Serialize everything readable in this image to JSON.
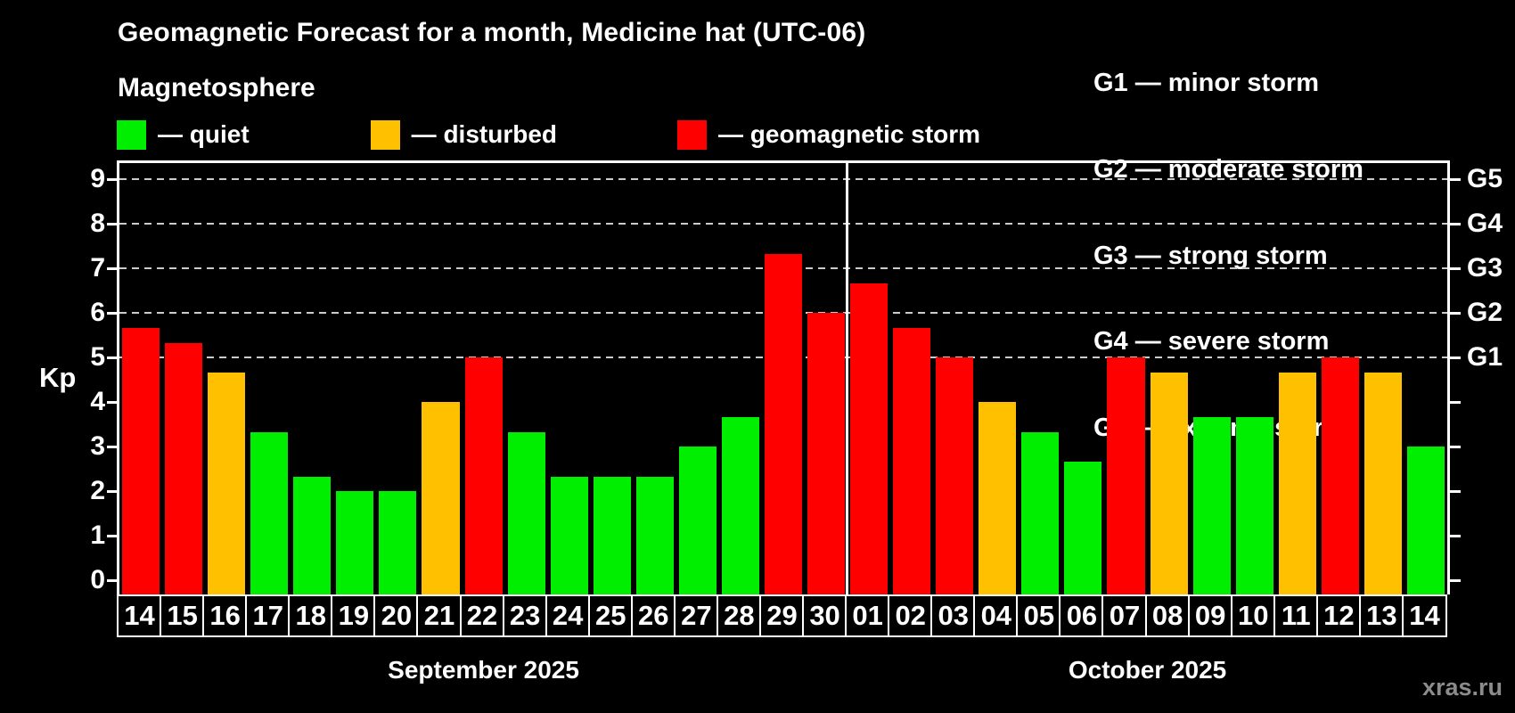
{
  "header": {
    "title": "Geomagnetic Forecast for a month, Medicine hat (UTC-06)",
    "subtitle": "Magnetosphere"
  },
  "legend": {
    "items": [
      {
        "name": "quiet",
        "label": "— quiet",
        "color": "#00ee00"
      },
      {
        "name": "disturbed",
        "label": "— disturbed",
        "color": "#ffc000"
      },
      {
        "name": "storm",
        "label": "— geomagnetic storm",
        "color": "#ff0000"
      }
    ]
  },
  "g_scale_legend": {
    "items": [
      "G1 — minor storm",
      "G2 — moderate storm",
      "G3 — strong storm",
      "G4 — severe storm",
      "G5 — extreme storm"
    ]
  },
  "watermark": "xras.ru",
  "chart_data": {
    "type": "bar",
    "title": "Geomagnetic Forecast for a month, Medicine hat (UTC-06)",
    "subtitle": "Magnetosphere",
    "ylabel": "Kp",
    "ylim": [
      0,
      9.37
    ],
    "y_ticks": [
      0,
      1,
      2,
      3,
      4,
      5,
      6,
      7,
      8,
      9
    ],
    "gridlines_at": [
      5,
      6,
      7,
      8,
      9
    ],
    "right_axis_labels": [
      {
        "kp": 5,
        "label": "G1"
      },
      {
        "kp": 6,
        "label": "G2"
      },
      {
        "kp": 7,
        "label": "G3"
      },
      {
        "kp": 8,
        "label": "G4"
      },
      {
        "kp": 9,
        "label": "G5"
      }
    ],
    "grid": "dashed-horizontal",
    "legend_position": "top-left",
    "months": [
      {
        "label": "September 2025",
        "days": 17
      },
      {
        "label": "October 2025",
        "days": 14
      }
    ],
    "categories": [
      "14",
      "15",
      "16",
      "17",
      "18",
      "19",
      "20",
      "21",
      "22",
      "23",
      "24",
      "25",
      "26",
      "27",
      "28",
      "29",
      "30",
      "01",
      "02",
      "03",
      "04",
      "05",
      "06",
      "07",
      "08",
      "09",
      "10",
      "11",
      "12",
      "13",
      "14"
    ],
    "series": [
      {
        "name": "Kp forecast",
        "values": [
          5.67,
          5.33,
          4.67,
          3.33,
          2.33,
          2,
          2,
          4,
          5,
          3.33,
          2.33,
          2.33,
          2.33,
          3,
          3.67,
          7.33,
          6,
          6.67,
          5.67,
          5,
          4,
          3.33,
          2.67,
          5,
          4.67,
          3.67,
          3.67,
          4.67,
          5,
          4.67,
          3
        ],
        "statuses": [
          "storm",
          "storm",
          "disturbed",
          "quiet",
          "quiet",
          "quiet",
          "quiet",
          "disturbed",
          "storm",
          "quiet",
          "quiet",
          "quiet",
          "quiet",
          "quiet",
          "quiet",
          "storm",
          "storm",
          "storm",
          "storm",
          "storm",
          "disturbed",
          "quiet",
          "quiet",
          "storm",
          "disturbed",
          "quiet",
          "quiet",
          "disturbed",
          "storm",
          "disturbed",
          "quiet"
        ]
      }
    ],
    "colors": {
      "quiet": "#00ee00",
      "disturbed": "#ffc000",
      "storm": "#ff0000"
    }
  }
}
